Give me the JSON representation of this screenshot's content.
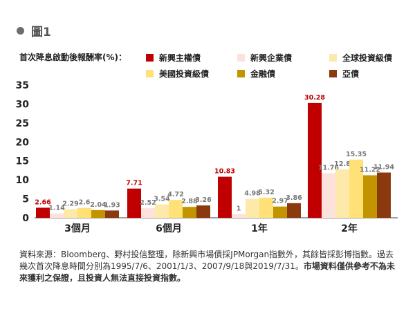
{
  "figure": {
    "title": "圖1"
  },
  "chart_data": {
    "type": "bar",
    "ylabel": "首次降息啟動後報酬率(%)：",
    "ylim": [
      0,
      35
    ],
    "yticks": [
      0,
      5,
      10,
      15,
      20,
      25,
      30,
      35
    ],
    "categories": [
      "3個月",
      "6個月",
      "1年",
      "2年"
    ],
    "series": [
      {
        "name": "新興主權債",
        "color": "#c00000",
        "values": [
          2.66,
          7.71,
          10.83,
          30.28
        ],
        "labels": [
          "2.66",
          "7.71",
          "10.83",
          "30.28"
        ],
        "label_color": "#c00000"
      },
      {
        "name": "新興企業債",
        "color": "#fde1dc",
        "values": [
          1.14,
          2.52,
          1,
          11.76
        ],
        "labels": [
          "1.14",
          "2.52",
          "1",
          "11.76"
        ],
        "label_color": "#777777"
      },
      {
        "name": "全球投資級債",
        "color": "#fdeaaa",
        "values": [
          2.29,
          3.54,
          4.98,
          12.8
        ],
        "labels": [
          "2.29",
          "3.54",
          "4.98",
          "12.8"
        ],
        "label_color": "#777777"
      },
      {
        "name": "美國投資級債",
        "color": "#ffe177",
        "values": [
          2.6,
          4.72,
          5.32,
          15.35
        ],
        "labels": [
          "2.6",
          "4.72",
          "5.32",
          "15.35"
        ],
        "label_color": "#777777"
      },
      {
        "name": "金融債",
        "color": "#c29400",
        "values": [
          2.04,
          2.88,
          2.97,
          11.22
        ],
        "labels": [
          "2.04",
          "2.88",
          "2.97",
          "11.22"
        ],
        "label_color": "#777777"
      },
      {
        "name": "亞債",
        "color": "#8b3a0f",
        "values": [
          1.93,
          3.26,
          3.86,
          11.94
        ],
        "labels": [
          "1.93",
          "3.26",
          "3.86",
          "11.94"
        ],
        "label_color": "#777777"
      }
    ],
    "legend_placement": "top",
    "grid": false
  },
  "source": {
    "text": "資料來源：Bloomberg、野村投信整理，除新興市場債採JPMorgan指數外，其餘皆採彭博指數。過去幾次首次降息時間分別為1995/7/6、2001/1/3、2007/9/18與2019/7/31。",
    "disclaimer": "市場資料僅供參考不為未來獲利之保證，且投資人無法直接投資指數。"
  }
}
